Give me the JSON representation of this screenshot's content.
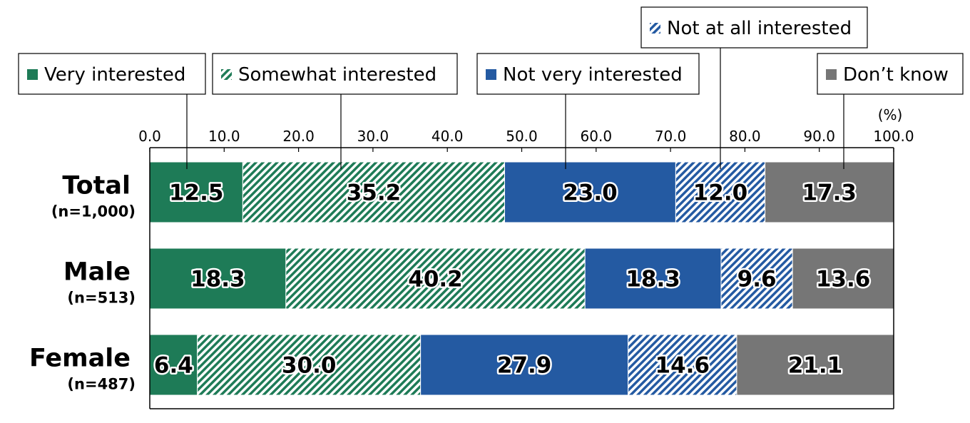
{
  "chart_data": {
    "type": "bar",
    "orientation": "horizontal",
    "stacked": true,
    "unit": "(%)",
    "xlim": [
      0,
      100
    ],
    "ticks": [
      "0.0",
      "10.0",
      "20.0",
      "30.0",
      "40.0",
      "50.0",
      "60.0",
      "70.0",
      "80.0",
      "90.0",
      "100.0"
    ],
    "categories": [
      {
        "name": "Total",
        "n": "(n=1,000)"
      },
      {
        "name": "Male",
        "n": "(n=513)"
      },
      {
        "name": "Female",
        "n": "(n=487)"
      }
    ],
    "series": [
      {
        "name": "Very interested",
        "color": "#1e7b57",
        "pattern": "solid",
        "values": [
          12.5,
          18.3,
          6.4
        ],
        "labels": [
          "12.5",
          "18.3",
          "6.4"
        ]
      },
      {
        "name": "Somewhat interested",
        "color": "#1e7b57",
        "pattern": "hatch",
        "values": [
          35.2,
          40.2,
          30.0
        ],
        "labels": [
          "35.2",
          "40.2",
          "30.0"
        ]
      },
      {
        "name": "Not very interested",
        "color": "#245aa2",
        "pattern": "solid",
        "values": [
          23.0,
          18.3,
          27.9
        ],
        "labels": [
          "23.0",
          "18.3",
          "27.9"
        ]
      },
      {
        "name": "Not at all interested",
        "color": "#245aa2",
        "pattern": "hatch",
        "values": [
          12.0,
          9.6,
          14.6
        ],
        "labels": [
          "12.0",
          "9.6",
          "14.6"
        ]
      },
      {
        "name": "Don’t know",
        "color": "#767676",
        "pattern": "solid",
        "values": [
          17.3,
          13.6,
          21.1
        ],
        "labels": [
          "17.3",
          "13.6",
          "21.1"
        ]
      }
    ],
    "legend_placement": "callouts above the Total bar"
  }
}
